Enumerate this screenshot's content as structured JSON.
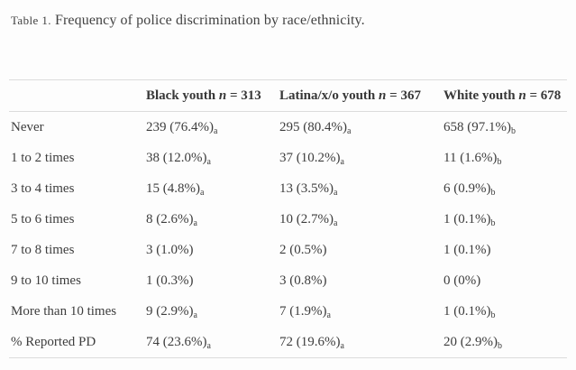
{
  "caption": {
    "label": "Table 1.",
    "text": "Frequency of police discrimination by race/ethnicity."
  },
  "table": {
    "n_symbol": "n",
    "equals": "=",
    "columns": [
      {
        "name": "Black youth",
        "n": "313"
      },
      {
        "name": "Latina/x/o youth",
        "n": "367"
      },
      {
        "name": "White youth",
        "n": "678"
      }
    ],
    "rows": [
      {
        "label": "Never",
        "cells": [
          {
            "value": "239 (76.4%)",
            "sub": "a"
          },
          {
            "value": "295 (80.4%)",
            "sub": "a"
          },
          {
            "value": "658 (97.1%)",
            "sub": "b"
          }
        ]
      },
      {
        "label": "1 to 2 times",
        "cells": [
          {
            "value": "38 (12.0%)",
            "sub": "a"
          },
          {
            "value": "37 (10.2%)",
            "sub": "a"
          },
          {
            "value": "11 (1.6%)",
            "sub": "b"
          }
        ]
      },
      {
        "label": "3 to 4 times",
        "cells": [
          {
            "value": "15 (4.8%)",
            "sub": "a"
          },
          {
            "value": "13 (3.5%)",
            "sub": "a"
          },
          {
            "value": "6 (0.9%)",
            "sub": "b"
          }
        ]
      },
      {
        "label": "5 to 6 times",
        "cells": [
          {
            "value": "8 (2.6%)",
            "sub": "a"
          },
          {
            "value": "10 (2.7%)",
            "sub": "a"
          },
          {
            "value": "1 (0.1%)",
            "sub": "b"
          }
        ]
      },
      {
        "label": "7 to 8 times",
        "cells": [
          {
            "value": "3 (1.0%)",
            "sub": ""
          },
          {
            "value": "2 (0.5%)",
            "sub": ""
          },
          {
            "value": "1 (0.1%)",
            "sub": ""
          }
        ]
      },
      {
        "label": "9 to 10 times",
        "cells": [
          {
            "value": "1 (0.3%)",
            "sub": ""
          },
          {
            "value": "3 (0.8%)",
            "sub": ""
          },
          {
            "value": "0 (0%)",
            "sub": ""
          }
        ]
      },
      {
        "label": "More than 10 times",
        "cells": [
          {
            "value": "9 (2.9%)",
            "sub": "a"
          },
          {
            "value": "7 (1.9%)",
            "sub": "a"
          },
          {
            "value": "1 (0.1%)",
            "sub": "b"
          }
        ]
      },
      {
        "label": "% Reported PD",
        "cells": [
          {
            "value": "74 (23.6%)",
            "sub": "a"
          },
          {
            "value": "72 (19.6%)",
            "sub": "a"
          },
          {
            "value": "20 (2.9%)",
            "sub": "b"
          }
        ]
      }
    ]
  },
  "colors": {
    "background": "#fdfdfd",
    "rule": "#dcdcdc",
    "text": "#3d3d3d"
  }
}
